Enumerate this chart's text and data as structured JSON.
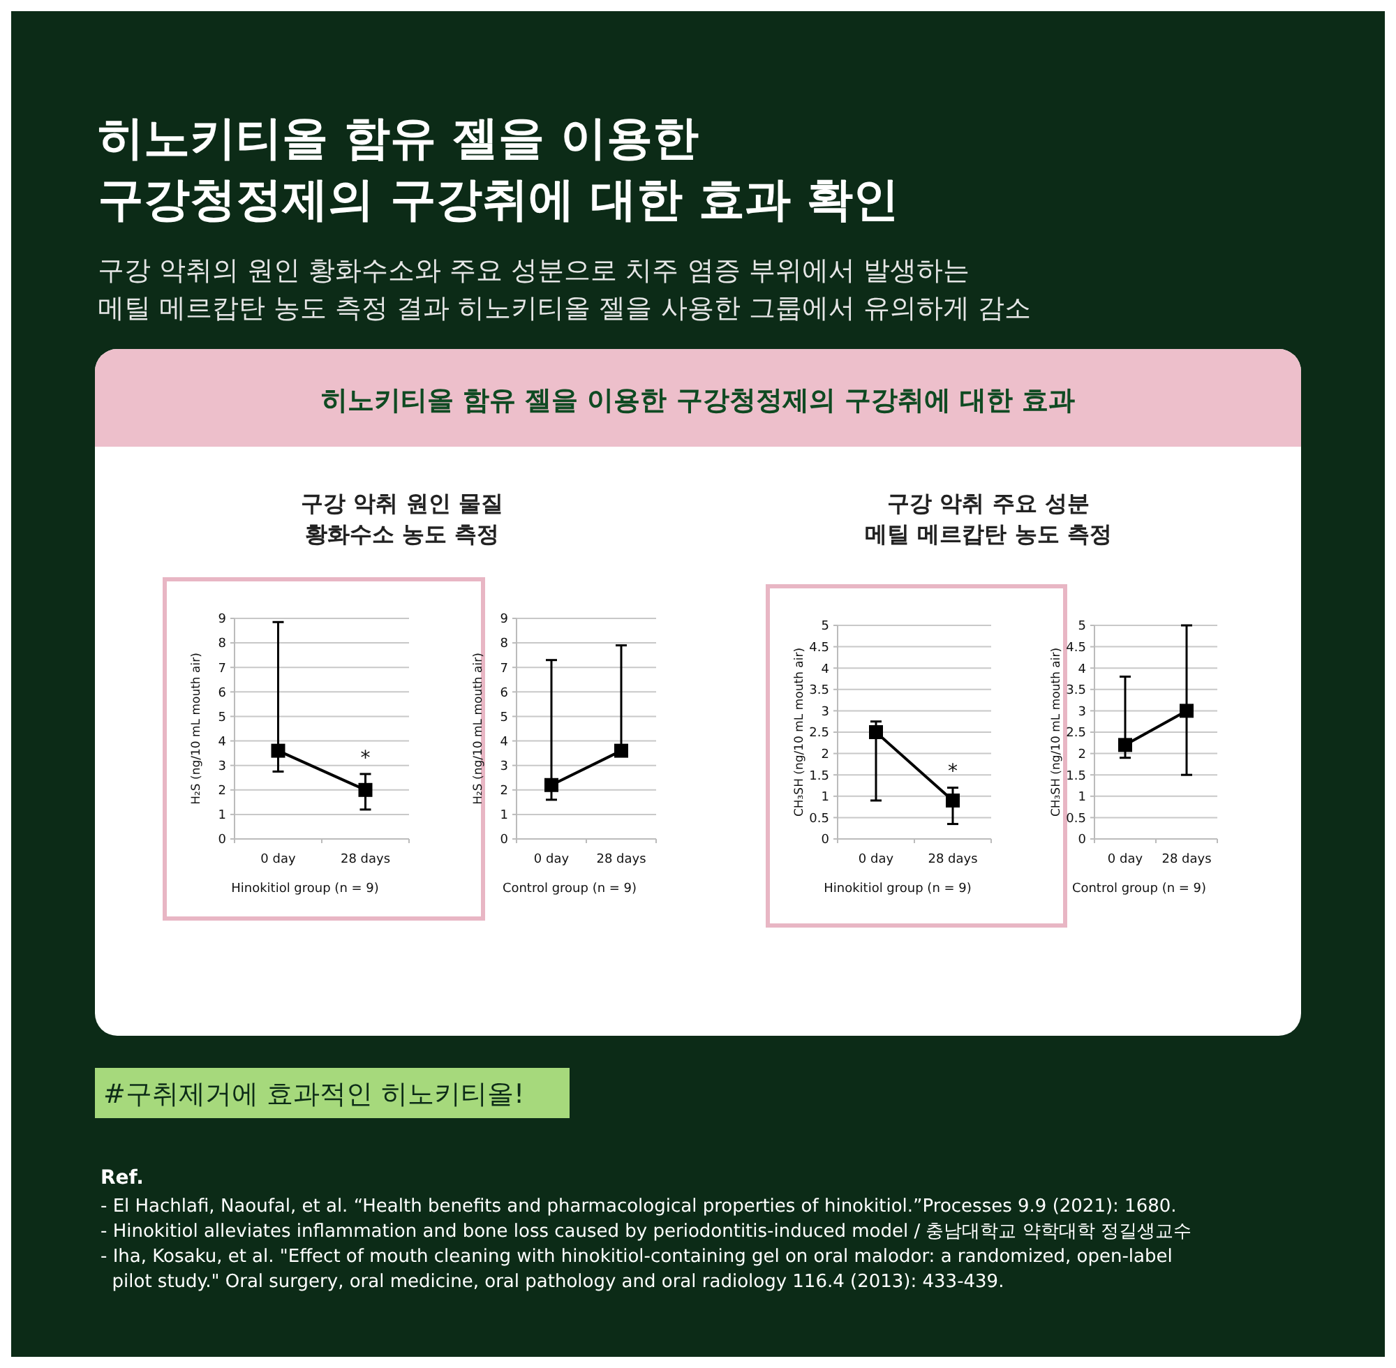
{
  "chart_data": [
    {
      "type": "line",
      "title": "구강 악취 원인 물질\n황화수소 농도 측정",
      "xlabel": "Hinokitiol group (n = 9)",
      "ylabel": "H₂S (ng/10 mL mouth air)",
      "categories": [
        "0 day",
        "28 days"
      ],
      "series": [
        {
          "color": "#000000",
          "values": [
            3.6,
            2.0
          ],
          "errors": [
            [
              2.75,
              8.85
            ],
            [
              1.2,
              2.65
            ]
          ]
        }
      ],
      "ylim": [
        0,
        9
      ],
      "yticks": [
        0,
        1,
        2,
        3,
        4,
        5,
        6,
        7,
        8,
        9
      ],
      "grid": "y",
      "marker": "square",
      "line_style": "solid",
      "annotations": [
        "*",
        "히노키티올 함유 젤을 이용한\n구강청정제의 구강취에 대한 효과 확인",
        "구강 악취의 원인 황화수소와 주요 성분으로 치주 염증 부위에서 발생하는\n메틸 메르캅탄 농도 측정 결과 히노키티올 젤을 사용한 그룹에서 유의하게 감소",
        "히노키티올 함유 젤을 이용한 구강청정제의 구강취에 대한 효과",
        "#구취제거에 효과적인 히노키티올!",
        "Ref.",
        "- El Hachlafi, Naoufal, et al. “Health benefits and pharmacological properties of hinokitiol.”Processes 9.9 (2021): 1680.",
        "- Hinokitiol alleviates inflammation and bone loss caused by periodontitis-induced model / 충남대학교 약학대학 정길생교수",
        "- Iha, Kosaku, et al. \"Effect of mouth cleaning with hinokitiol-containing gel on oral malodor: a randomized, open-label\n  pilot study.\" Oral surgery, oral medicine, oral pathology and oral radiology 116.4 (2013): 433-439."
      ]
    },
    {
      "type": "line",
      "xlabel": "Control group (n = 9)",
      "ylabel": "H₂S (ng/10 mL mouth air)",
      "categories": [
        "0 day",
        "28 days"
      ],
      "series": [
        {
          "color": "#000000",
          "values": [
            2.2,
            3.6
          ],
          "errors": [
            [
              1.6,
              7.3
            ],
            [
              3.6,
              7.9
            ]
          ]
        }
      ],
      "ylim": [
        0,
        9
      ],
      "yticks": [
        0,
        1,
        2,
        3,
        4,
        5,
        6,
        7,
        8,
        9
      ],
      "grid": "y",
      "marker": "square",
      "line_style": "solid"
    },
    {
      "type": "line",
      "title": "구강 악취 주요 성분\n메틸 메르캅탄 농도 측정",
      "xlabel": "Hinokitiol group (n = 9)",
      "ylabel": "CH₃SH (ng/10 mL mouth air)",
      "categories": [
        "0 day",
        "28 days"
      ],
      "series": [
        {
          "color": "#000000",
          "values": [
            2.5,
            0.9
          ],
          "errors": [
            [
              0.9,
              2.75
            ],
            [
              0.35,
              1.2
            ]
          ]
        }
      ],
      "ylim": [
        0,
        5
      ],
      "yticks": [
        0,
        0.5,
        1,
        1.5,
        2,
        2.5,
        3,
        3.5,
        4,
        4.5,
        5
      ],
      "grid": "y",
      "marker": "square",
      "line_style": "solid",
      "annotations": [
        "*"
      ]
    },
    {
      "type": "line",
      "xlabel": "Control group (n = 9)",
      "ylabel": "CH₃SH (ng/10 mL mouth air)",
      "categories": [
        "0 day",
        "28 days"
      ],
      "series": [
        {
          "color": "#000000",
          "values": [
            2.2,
            3.0
          ],
          "errors": [
            [
              1.9,
              3.8
            ],
            [
              1.5,
              5.0
            ]
          ]
        }
      ],
      "ylim": [
        0,
        5
      ],
      "yticks": [
        0,
        0.5,
        1,
        1.5,
        2,
        2.5,
        3,
        3.5,
        4,
        4.5,
        5
      ],
      "grid": "y",
      "marker": "square",
      "line_style": "solid"
    }
  ]
}
